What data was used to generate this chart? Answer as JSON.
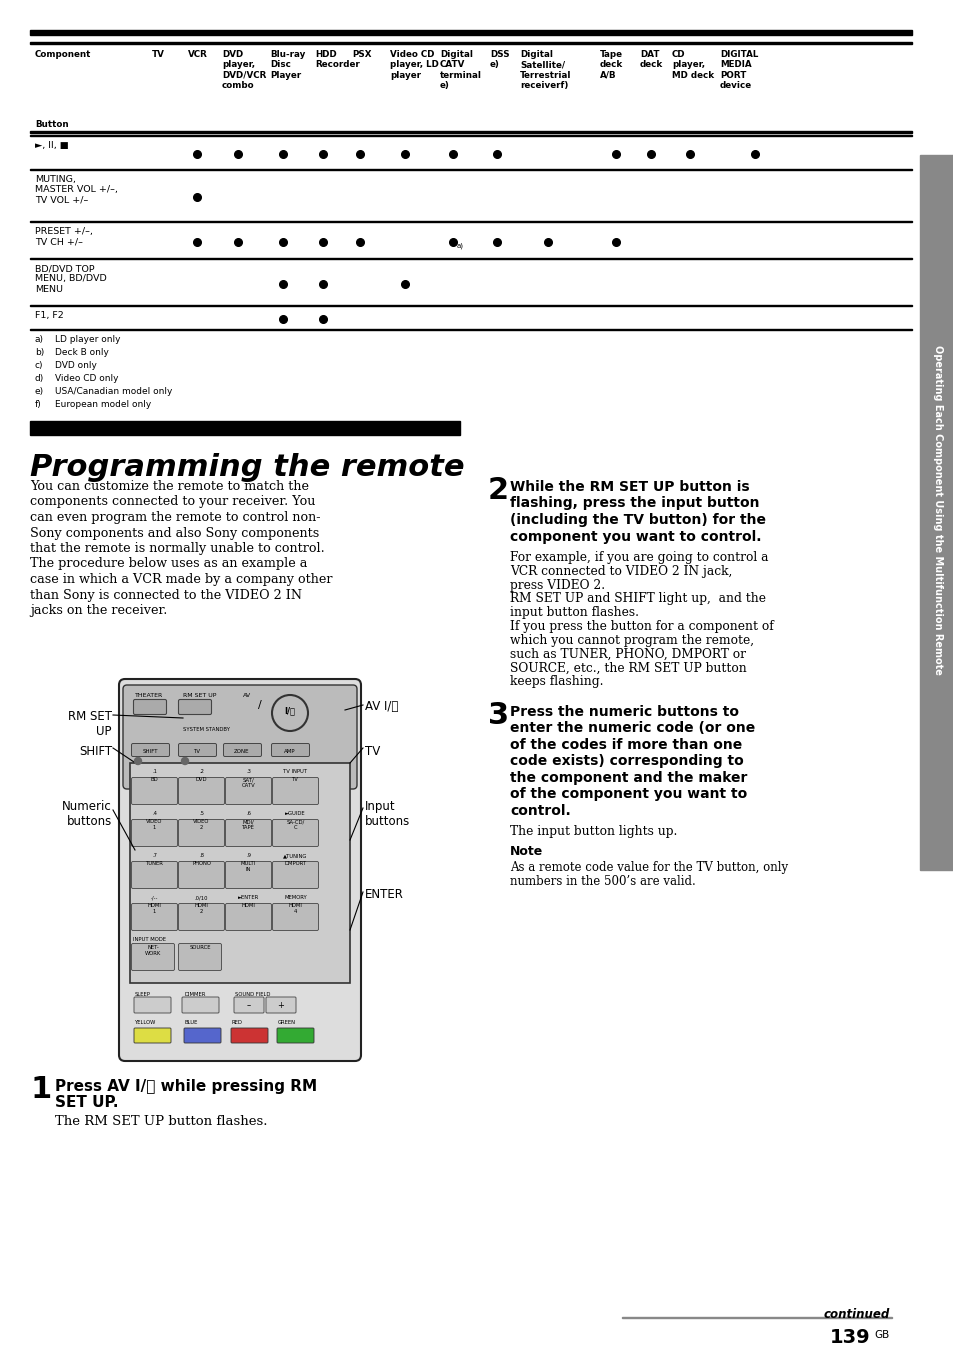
{
  "page_bg": "#ffffff",
  "sidebar_text": "Operating Each Component Using the Multifunction Remote",
  "page_number": "139",
  "page_suffix": "GB",
  "continued_text": "continued",
  "table_rows": [
    {
      "button": "►, II, ■",
      "dots": [
        1,
        1,
        1,
        1,
        1,
        1,
        1,
        1,
        0,
        1,
        1,
        1,
        1
      ]
    },
    {
      "button": "MUTING,\nMASTER VOL +/–,\nTV VOL +/–",
      "dots": [
        1,
        0,
        0,
        0,
        0,
        0,
        0,
        0,
        0,
        0,
        0,
        0,
        0
      ]
    },
    {
      "button": "PRESET +/–,\nTV CH +/–",
      "dots": [
        1,
        1,
        1,
        1,
        1,
        0,
        "a",
        1,
        1,
        1,
        0,
        0,
        0
      ]
    },
    {
      "button": "BD/DVD TOP\nMENU, BD/DVD\nMENU",
      "dots": [
        0,
        0,
        1,
        1,
        0,
        1,
        0,
        0,
        0,
        0,
        0,
        0,
        0
      ]
    },
    {
      "button": "F1, F2",
      "dots": [
        0,
        0,
        1,
        1,
        0,
        0,
        0,
        0,
        0,
        0,
        0,
        0,
        0
      ]
    }
  ],
  "footnotes": [
    [
      "a)",
      "LD player only"
    ],
    [
      "b)",
      "Deck B only"
    ],
    [
      "c)",
      "DVD only"
    ],
    [
      "d)",
      "Video CD only"
    ],
    [
      "e)",
      "USA/Canadian model only"
    ],
    [
      "f)",
      "European model only"
    ]
  ],
  "section_title": "Programming the remote",
  "intro_text": [
    "You can customize the remote to match the",
    "components connected to your receiver. You",
    "can even program the remote to control non-",
    "Sony components and also Sony components",
    "that the remote is normally unable to control.",
    "The procedure below uses as an example a",
    "case in which a VCR made by a company other",
    "than Sony is connected to the VIDEO 2 IN",
    "jacks on the receiver."
  ],
  "step1_text": "The RM SET UP button flashes.",
  "step2_bold": [
    "While the RM SET UP button is",
    "flashing, press the input button",
    "(including the TV button) for the",
    "component you want to control."
  ],
  "step2_body": [
    "For example, if you are going to control a",
    "VCR connected to VIDEO 2 IN jack,",
    "press VIDEO 2.",
    "RM SET UP and SHIFT light up,  and the",
    "input button flashes.",
    "If you press the button for a component of",
    "which you cannot program the remote,",
    "such as TUNER, PHONO, DMPORT or",
    "SOURCE, etc., the RM SET UP button",
    "keeps flashing."
  ],
  "step3_bold": [
    "Press the numeric buttons to",
    "enter the numeric code (or one",
    "of the codes if more than one",
    "code exists) corresponding to",
    "the component and the maker",
    "of the component you want to",
    "control."
  ],
  "step3_text": "The input button lights up.",
  "note_title": "Note",
  "note_text": [
    "As a remote code value for the TV button, only",
    "numbers in the 500’s are valid."
  ]
}
